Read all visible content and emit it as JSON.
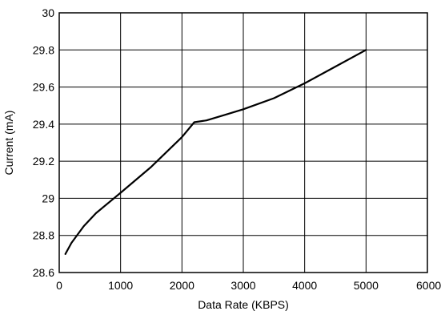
{
  "chart_data": {
    "type": "line",
    "title": "",
    "xlabel": "Data Rate (KBPS)",
    "ylabel": "Current (mA)",
    "xlim": [
      0,
      6000
    ],
    "ylim": [
      28.6,
      30
    ],
    "grid": true,
    "x_ticks": [
      0,
      1000,
      2000,
      3000,
      4000,
      5000,
      6000
    ],
    "y_ticks": [
      28.6,
      28.8,
      29,
      29.2,
      29.4,
      29.6,
      29.8,
      30
    ],
    "x_tick_labels": [
      "0",
      "1000",
      "2000",
      "3000",
      "4000",
      "5000",
      "6000"
    ],
    "y_tick_labels": [
      "28.6",
      "28.8",
      "29",
      "29.2",
      "29.4",
      "29.6",
      "29.8",
      "30"
    ],
    "series": [
      {
        "color": "#000000",
        "x": [
          100,
          200,
          400,
          600,
          1000,
          1500,
          2000,
          2200,
          2400,
          2700,
          3000,
          3500,
          4000,
          4500,
          5000
        ],
        "y": [
          28.7,
          28.76,
          28.85,
          28.92,
          29.03,
          29.17,
          29.33,
          29.41,
          29.42,
          29.45,
          29.48,
          29.54,
          29.62,
          29.71,
          29.8
        ]
      }
    ]
  }
}
